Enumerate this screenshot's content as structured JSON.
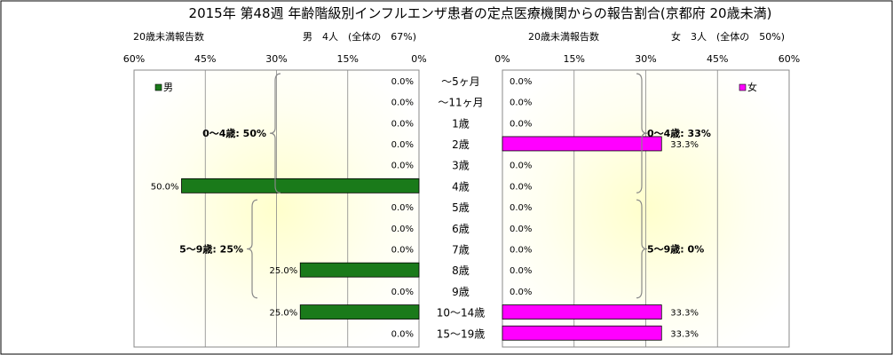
{
  "title": "2015年 第48週 年齢階級別インフルエンザ患者の定点医療機関からの報告割合(京都府 20歳未満)",
  "colors": {
    "male": "#1a7a1a",
    "female": "#ff00ff",
    "bracket": "#888888"
  },
  "chart_data": [
    {
      "type": "bar",
      "orientation": "horizontal",
      "direction": "right-to-left",
      "panel": "left",
      "header_left": "20歳未満報告数",
      "header_main": "男　4人　(全体の　67%)",
      "series": [
        {
          "name": "男",
          "values": [
            0,
            0,
            0,
            0,
            0,
            50,
            0,
            0,
            0,
            25,
            0,
            25,
            0
          ]
        }
      ],
      "value_labels": [
        "0.0%",
        "0.0%",
        "0.0%",
        "0.0%",
        "0.0%",
        "50.0%",
        "0.0%",
        "0.0%",
        "0.0%",
        "25.0%",
        "0.0%",
        "25.0%",
        "0.0%"
      ],
      "xlim": [
        0,
        60
      ],
      "ticks": [
        "60%",
        "45%",
        "30%",
        "15%",
        "0%"
      ],
      "tick_values": [
        60,
        45,
        30,
        15,
        0
      ],
      "legend_position": "top-left",
      "groups": [
        {
          "label": "0～4歳: 50%",
          "from": 0,
          "to": 5
        },
        {
          "label": "5～9歳: 25%",
          "from": 6,
          "to": 10
        }
      ]
    },
    {
      "type": "bar",
      "orientation": "horizontal",
      "direction": "left-to-right",
      "panel": "right",
      "header_left": "20歳未満報告数",
      "header_main": "女　3人　(全体の　50%)",
      "series": [
        {
          "name": "女",
          "values": [
            0,
            0,
            0,
            33.3,
            0,
            0,
            0,
            0,
            0,
            0,
            0,
            33.3,
            33.3
          ]
        }
      ],
      "value_labels": [
        "0.0%",
        "0.0%",
        "0.0%",
        "33.3%",
        "0.0%",
        "0.0%",
        "0.0%",
        "0.0%",
        "0.0%",
        "0.0%",
        "0.0%",
        "33.3%",
        "33.3%"
      ],
      "xlim": [
        0,
        60
      ],
      "ticks": [
        "0%",
        "15%",
        "30%",
        "45%",
        "60%"
      ],
      "tick_values": [
        0,
        15,
        30,
        45,
        60
      ],
      "legend_position": "top-right",
      "groups": [
        {
          "label": "0～4歳: 33%",
          "from": 0,
          "to": 5
        },
        {
          "label": "5～9歳: 0%",
          "from": 6,
          "to": 10
        }
      ]
    }
  ],
  "categories": [
    "～5ヶ月",
    "～11ヶ月",
    "1歳",
    "2歳",
    "3歳",
    "4歳",
    "5歳",
    "6歳",
    "7歳",
    "8歳",
    "9歳",
    "10～14歳",
    "15～19歳"
  ]
}
